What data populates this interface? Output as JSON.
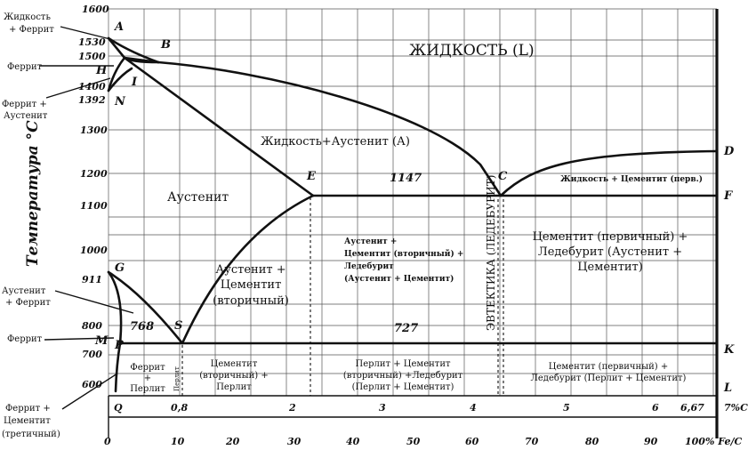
{
  "diagram": {
    "y_axis_title": "Температура °C",
    "temp_ticks": [
      "1600",
      "1530",
      "1500",
      "1400",
      "1392",
      "1300",
      "1200",
      "1100",
      "1000",
      "911",
      "800",
      "700",
      "600"
    ],
    "temp_tick_H": "H",
    "temp_tick_M": "M",
    "carbon_ticks": {
      "q": "Q",
      "c08": "0,8",
      "c2": "2",
      "c3": "3",
      "c4": "4",
      "c5": "5",
      "c6": "6",
      "c667": "6,67",
      "c7": "7%C"
    },
    "fec_ticks": [
      "0",
      "10",
      "20",
      "30",
      "40",
      "50",
      "60",
      "70",
      "80",
      "90",
      "100% Fe/C"
    ],
    "points": {
      "A": "A",
      "B": "B",
      "I": "I",
      "N": "N",
      "E": "E",
      "C": "C",
      "D": "D",
      "F": "F",
      "G": "G",
      "S": "S",
      "P": "P",
      "K": "K",
      "L": "L"
    },
    "temps": {
      "t1147": "1147",
      "t727": "727",
      "t768": "768"
    },
    "left_labels": {
      "liquid_ferrite": [
        "Жидкость",
        "+ Феррит"
      ],
      "ferrite_top": "Феррит",
      "ferrite_austenite": [
        "Феррит +",
        "Аустенит"
      ],
      "austenite_ferrite": [
        "Аустенит",
        "+ Феррит"
      ],
      "ferrite_mid": "Феррит",
      "ferrite_cementite": [
        "Феррит +",
        "Цементит",
        "(третичный)"
      ]
    },
    "regions": {
      "liquid": "ЖИДКОСТЬ (L)",
      "liquid_austenite": "Жидкость+Аустенит (А)",
      "liquid_cementite": "Жидкость + Цементит (перв.)",
      "austenite": "Аустенит",
      "austenite_cementite": [
        "Аустенит +",
        "Цементит",
        "(вторичный)"
      ],
      "aust_cem_ledeb": [
        "Аустенит +",
        "Цементит (вторичный) +",
        "Ледебурит",
        "(Аустенит + Цементит)"
      ],
      "eutectic": "ЭВТЕКТИКА (ЛЕДЕБУРИТ)",
      "cem_ledeb_upper": [
        "Цементит (первичный) +",
        "Ледебурит (Аустенит +",
        "Цементит)"
      ],
      "ferrite_pearlite": [
        "Феррит",
        "+",
        "Перлит"
      ],
      "pearlite_vertical": "Перлит",
      "cem_pearlite": [
        "Цементит",
        "(вторичный) +",
        "Перлит"
      ],
      "pearl_cem_ledeb": [
        "Перлит + Цементит",
        "(вторичный) +Ледебурит",
        "(Перлит + Цементит)"
      ],
      "cem_ledeb_lower": [
        "Цементит (первичный) +",
        "Ледебурит (Перлит + Цементит)"
      ]
    }
  }
}
